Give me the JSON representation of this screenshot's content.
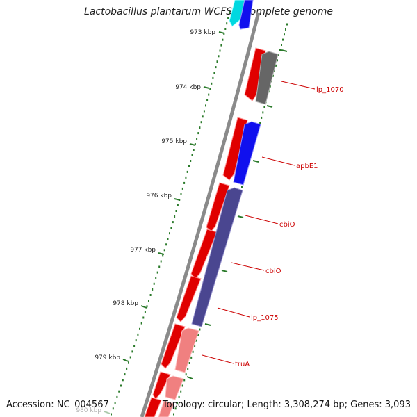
{
  "title": "Lactobacillus plantarum WCFS1, complete genome",
  "accession": "Accession: NC_004567",
  "summary": "Topology: circular; Length: 3,308,274 bp; Genes: 3,093",
  "colors": {
    "backbone": "#8a8a8a",
    "tick": "#2a7a2a",
    "forward_gene": "#e00000",
    "forward_gene_light": "#f08080",
    "reverse_gene_blue": "#1010ee",
    "reverse_gene_slate": "#4a4690",
    "reverse_gene_gray": "#666666",
    "reverse_gene_cyan": "#00d8e0",
    "label": "#cc0000"
  },
  "ticks": [
    {
      "label": "973 kbp"
    },
    {
      "label": "974 kbp"
    },
    {
      "label": "975 kbp"
    },
    {
      "label": "976 kbp"
    },
    {
      "label": "977 kbp"
    },
    {
      "label": "978 kbp"
    },
    {
      "label": "979 kbp"
    },
    {
      "label": "980 kbp"
    }
  ],
  "gene_labels": [
    {
      "text": "lp_1070"
    },
    {
      "text": "apbE1"
    },
    {
      "text": "cbiO"
    },
    {
      "text": "cbiO"
    },
    {
      "text": "lp_1075"
    },
    {
      "text": "truA"
    }
  ]
}
